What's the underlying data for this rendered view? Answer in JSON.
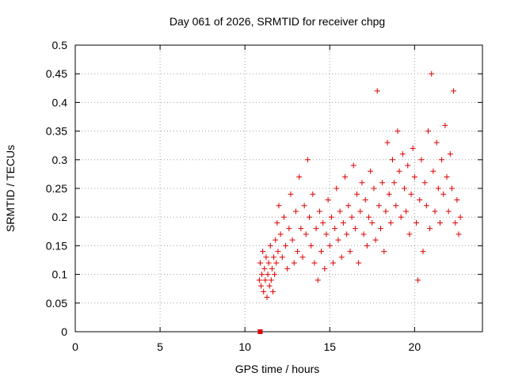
{
  "chart_data": {
    "type": "scatter",
    "title": "Day 061 of 2026, SRMTID for receiver chpg",
    "xlabel": "GPS time / hours",
    "ylabel": "SRMTID / TECUs",
    "xlim": [
      0,
      24
    ],
    "ylim": [
      0,
      0.5
    ],
    "xticks": [
      0,
      5,
      10,
      15,
      20
    ],
    "xtick_labels": [
      "0",
      "5",
      "10",
      "15",
      "20"
    ],
    "yticks": [
      0,
      0.05,
      0.1,
      0.15,
      0.2,
      0.25,
      0.3,
      0.35,
      0.4,
      0.45,
      0.5
    ],
    "ytick_labels": [
      "0",
      "0.05",
      "0.1",
      "0.15",
      "0.2",
      "0.25",
      "0.3",
      "0.35",
      "0.4",
      "0.45",
      "0.5"
    ],
    "grid": true,
    "marker": "plus",
    "color": "#e00000",
    "series": [
      {
        "name": "SRMTID",
        "x": [
          10.85,
          10.9,
          10.95,
          11.0,
          11.05,
          11.1,
          11.15,
          11.2,
          11.25,
          11.3,
          11.35,
          11.4,
          11.45,
          11.5,
          11.55,
          11.6,
          11.65,
          11.7,
          11.75,
          11.8,
          11.85,
          11.9,
          11.95,
          12.0,
          12.1,
          12.2,
          12.3,
          12.4,
          12.5,
          12.6,
          12.7,
          12.8,
          12.9,
          13.0,
          13.1,
          13.2,
          13.3,
          13.4,
          13.5,
          13.6,
          13.7,
          13.8,
          13.9,
          14.0,
          14.1,
          14.2,
          14.3,
          14.4,
          14.5,
          14.6,
          14.7,
          14.8,
          14.9,
          15.0,
          15.1,
          15.2,
          15.3,
          15.4,
          15.5,
          15.6,
          15.7,
          15.8,
          15.9,
          16.0,
          16.1,
          16.2,
          16.3,
          16.4,
          16.5,
          16.6,
          16.7,
          16.8,
          16.9,
          17.0,
          17.1,
          17.2,
          17.3,
          17.4,
          17.5,
          17.6,
          17.7,
          17.8,
          17.9,
          18.0,
          18.1,
          18.2,
          18.3,
          18.4,
          18.5,
          18.6,
          18.7,
          18.8,
          18.9,
          19.0,
          19.1,
          19.2,
          19.3,
          19.4,
          19.5,
          19.6,
          19.7,
          19.8,
          19.9,
          20.0,
          20.1,
          20.2,
          20.3,
          20.4,
          20.5,
          20.6,
          20.7,
          20.8,
          20.9,
          21.0,
          21.1,
          21.2,
          21.3,
          21.4,
          21.5,
          21.6,
          21.7,
          21.8,
          21.9,
          22.0,
          22.1,
          22.2,
          22.3,
          22.4,
          22.5,
          22.6,
          22.7
        ],
        "y": [
          0.09,
          0.12,
          0.08,
          0.1,
          0.14,
          0.07,
          0.11,
          0.09,
          0.13,
          0.06,
          0.1,
          0.12,
          0.08,
          0.15,
          0.09,
          0.11,
          0.07,
          0.13,
          0.1,
          0.16,
          0.12,
          0.19,
          0.14,
          0.22,
          0.17,
          0.13,
          0.2,
          0.15,
          0.11,
          0.18,
          0.24,
          0.16,
          0.12,
          0.21,
          0.14,
          0.27,
          0.18,
          0.13,
          0.22,
          0.17,
          0.3,
          0.2,
          0.15,
          0.24,
          0.12,
          0.18,
          0.09,
          0.21,
          0.14,
          0.19,
          0.11,
          0.17,
          0.23,
          0.15,
          0.2,
          0.12,
          0.18,
          0.25,
          0.16,
          0.21,
          0.13,
          0.19,
          0.27,
          0.17,
          0.22,
          0.14,
          0.2,
          0.29,
          0.18,
          0.24,
          0.12,
          0.21,
          0.26,
          0.17,
          0.23,
          0.15,
          0.2,
          0.28,
          0.19,
          0.25,
          0.16,
          0.42,
          0.22,
          0.18,
          0.26,
          0.14,
          0.21,
          0.33,
          0.24,
          0.19,
          0.3,
          0.26,
          0.22,
          0.35,
          0.28,
          0.2,
          0.31,
          0.25,
          0.21,
          0.29,
          0.17,
          0.24,
          0.32,
          0.27,
          0.19,
          0.09,
          0.23,
          0.3,
          0.14,
          0.26,
          0.22,
          0.35,
          0.18,
          0.45,
          0.28,
          0.21,
          0.33,
          0.25,
          0.19,
          0.3,
          0.24,
          0.36,
          0.27,
          0.21,
          0.31,
          0.25,
          0.42,
          0.19,
          0.23,
          0.17,
          0.2
        ]
      }
    ],
    "outlier_marker": {
      "x": 10.9,
      "y": 0
    }
  }
}
